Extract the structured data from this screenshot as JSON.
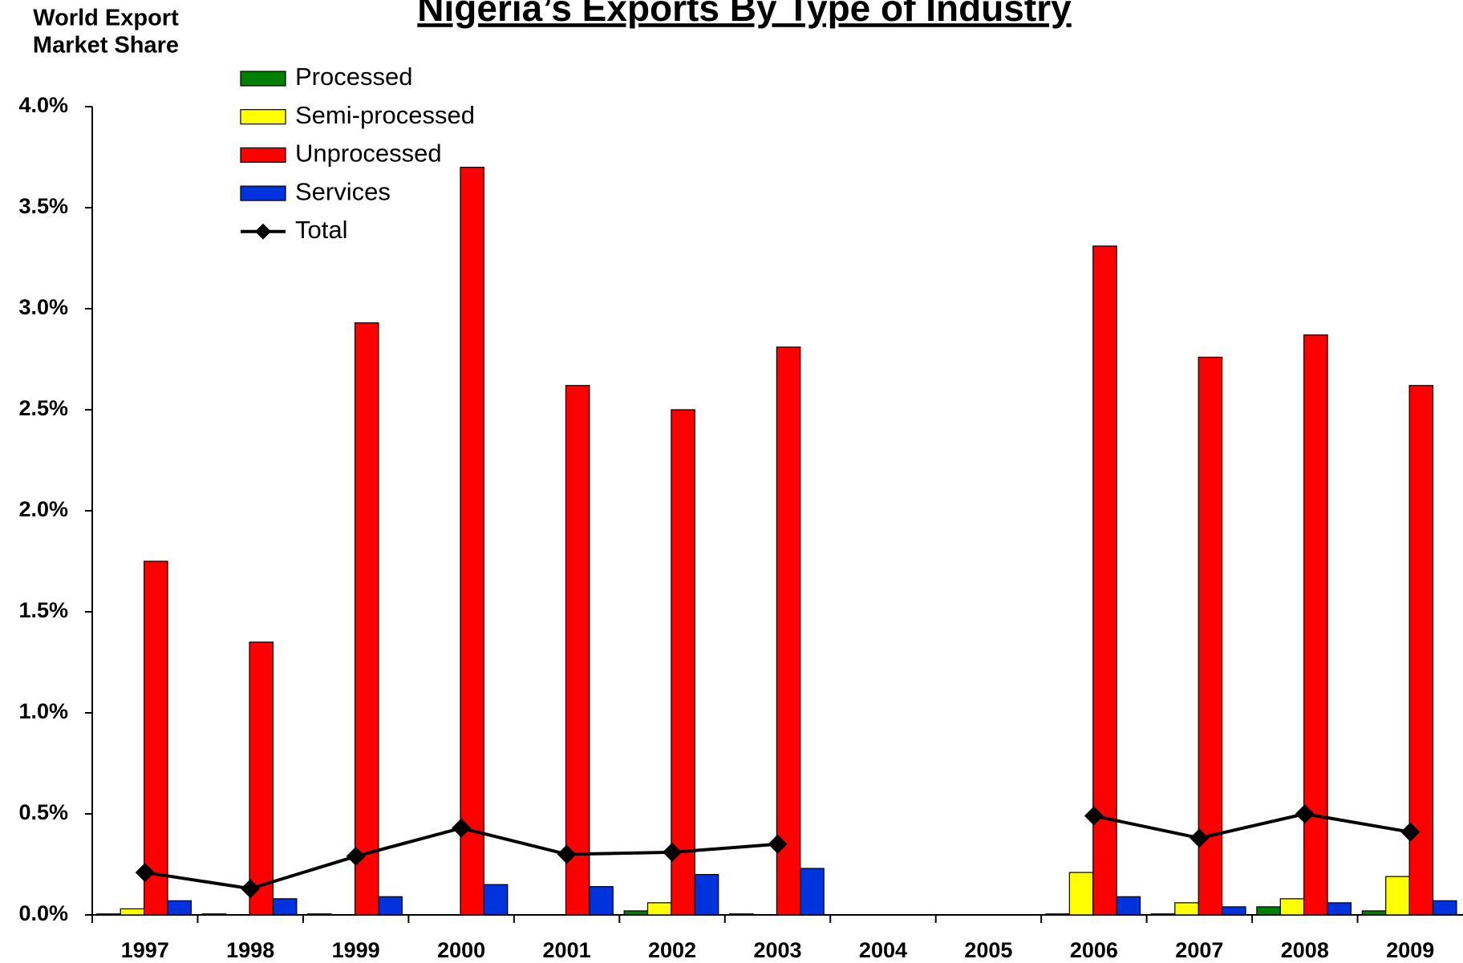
{
  "chart_data": {
    "type": "bar",
    "title": "Nigeria’s Exports By Type of Industry",
    "y_label": [
      "World Export",
      "Market Share"
    ],
    "categories": [
      "1997",
      "1998",
      "1999",
      "2000",
      "2001",
      "2002",
      "2003",
      "2004",
      "2005",
      "2006",
      "2007",
      "2008",
      "2009"
    ],
    "series": [
      {
        "name": "Processed",
        "color": "#008000",
        "values": [
          0.005,
          0.005,
          0.005,
          0,
          0,
          0.02,
          0.005,
          null,
          null,
          0.005,
          0.005,
          0.04,
          0.02
        ]
      },
      {
        "name": "Semi-processed",
        "color": "#ffff00",
        "values": [
          0.03,
          0,
          0,
          0,
          0,
          0.06,
          0,
          null,
          null,
          0.21,
          0.06,
          0.08,
          0.19
        ]
      },
      {
        "name": "Unprocessed",
        "color": "#ff0000",
        "values": [
          1.75,
          1.35,
          2.93,
          3.7,
          2.62,
          2.5,
          2.81,
          null,
          null,
          3.31,
          2.76,
          2.87,
          2.62
        ]
      },
      {
        "name": "Services",
        "color": "#0033dd",
        "values": [
          0.07,
          0.08,
          0.09,
          0.15,
          0.14,
          0.2,
          0.23,
          null,
          null,
          0.09,
          0.04,
          0.06,
          0.07
        ]
      },
      {
        "name": "Total",
        "type": "line",
        "color": "#000000",
        "values": [
          0.21,
          0.13,
          0.29,
          0.43,
          0.3,
          0.31,
          0.35,
          null,
          null,
          0.49,
          0.38,
          0.5,
          0.41
        ]
      }
    ],
    "ylim": [
      0,
      4
    ],
    "yticks": [
      {
        "value": 0,
        "label": "0.0%"
      },
      {
        "value": 0.5,
        "label": "0.5%"
      },
      {
        "value": 1,
        "label": "1.0%"
      },
      {
        "value": 1.5,
        "label": "1.5%"
      },
      {
        "value": 2,
        "label": "2.0%"
      },
      {
        "value": 2.5,
        "label": "2.5%"
      },
      {
        "value": 3,
        "label": "3.0%"
      },
      {
        "value": 3.5,
        "label": "3.5%"
      },
      {
        "value": 4,
        "label": "4.0%"
      }
    ],
    "legend": "top-left",
    "grid": false
  }
}
